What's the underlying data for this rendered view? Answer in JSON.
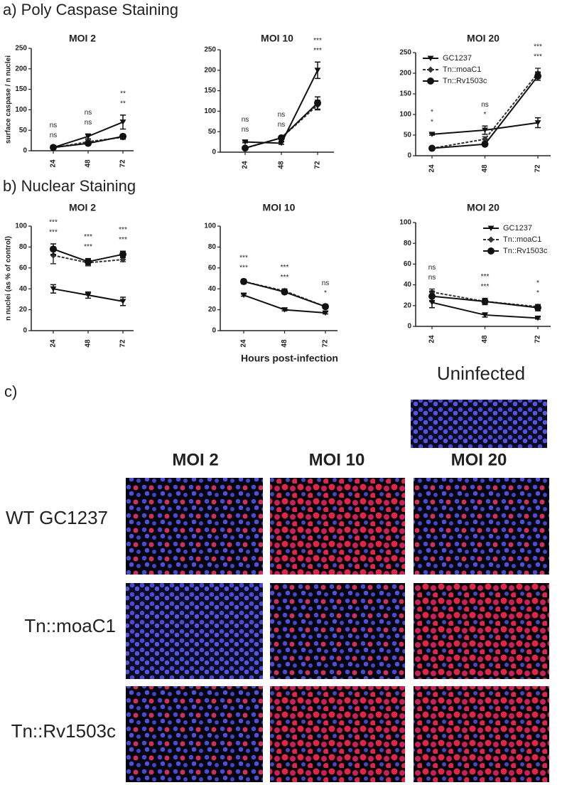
{
  "headings": {
    "a": "a) Poly Caspase Staining",
    "b": "b) Nuclear Staining",
    "c": "c)"
  },
  "chart_data": [
    {
      "type": "line",
      "title": "MOI 2",
      "ylabel": "surface caspase / n nuclei",
      "categories": [
        "24",
        "48",
        "72"
      ],
      "ylim": [
        0,
        250
      ],
      "yticks": [
        0,
        50,
        100,
        150,
        200,
        250
      ],
      "annotations": [
        [
          "ns",
          "ns"
        ],
        [
          "ns",
          "ns"
        ],
        [
          "**",
          "**"
        ]
      ],
      "series": [
        {
          "color": "#111",
          "marker": "triangle-down",
          "values": [
            8,
            35,
            70
          ],
          "errors": [
            2,
            6,
            17
          ]
        },
        {
          "color": "#333",
          "marker": "diamond",
          "line_style": "dashed",
          "values": [
            7,
            22,
            33
          ],
          "errors": [
            2,
            4,
            5
          ]
        },
        {
          "color": "#111",
          "marker": "circle",
          "values": [
            8,
            18,
            35
          ],
          "errors": [
            2,
            3,
            5
          ]
        }
      ]
    },
    {
      "type": "line",
      "title": "MOI 10",
      "categories": [
        "24",
        "48",
        "72"
      ],
      "ylim": [
        0,
        250
      ],
      "yticks": [
        0,
        50,
        100,
        150,
        200,
        250
      ],
      "annotations": [
        [
          "ns",
          "ns"
        ],
        [
          "ns",
          "ns"
        ],
        [
          "***",
          "***"
        ]
      ],
      "series": [
        {
          "color": "#111",
          "marker": "triangle-down",
          "values": [
            25,
            22,
            200
          ],
          "errors": [
            2,
            3,
            20
          ]
        },
        {
          "color": "#333",
          "marker": "diamond",
          "line_style": "dashed",
          "values": [
            10,
            35,
            115
          ],
          "errors": [
            2,
            4,
            12
          ]
        },
        {
          "color": "#111",
          "marker": "circle",
          "values": [
            10,
            35,
            120
          ],
          "errors": [
            2,
            4,
            15
          ]
        }
      ]
    },
    {
      "type": "line",
      "title": "MOI 20",
      "categories": [
        "24",
        "48",
        "72"
      ],
      "ylim": [
        0,
        250
      ],
      "yticks": [
        0,
        50,
        100,
        150,
        200,
        250
      ],
      "legend": "top-left",
      "annotations": [
        [
          "*",
          "*"
        ],
        [
          "ns",
          "*"
        ],
        [
          "***",
          "***"
        ]
      ],
      "series": [
        {
          "name": "GC1237",
          "color": "#111",
          "marker": "triangle-down",
          "values": [
            52,
            62,
            80
          ],
          "errors": [
            2,
            10,
            12
          ]
        },
        {
          "name": "Tn::moaC1",
          "color": "#333",
          "marker": "diamond",
          "line_style": "dashed",
          "values": [
            18,
            40,
            200
          ],
          "errors": [
            2,
            6,
            12
          ]
        },
        {
          "name": "Tn::Rv1503c",
          "color": "#111",
          "marker": "circle",
          "values": [
            18,
            28,
            193
          ],
          "errors": [
            2,
            4,
            10
          ]
        }
      ]
    },
    {
      "type": "line",
      "title": "MOI 2",
      "ylabel": "n nuclei (as % of control)",
      "categories": [
        "24",
        "48",
        "72"
      ],
      "ylim": [
        0,
        100
      ],
      "yticks": [
        0,
        20,
        40,
        60,
        80,
        100
      ],
      "annotations": [
        [
          "***",
          "***"
        ],
        [
          "***",
          "***"
        ],
        [
          "***",
          "***"
        ]
      ],
      "series": [
        {
          "color": "#111",
          "marker": "triangle-down",
          "values": [
            40,
            34,
            28
          ],
          "errors": [
            4,
            3,
            4
          ]
        },
        {
          "color": "#333",
          "marker": "diamond",
          "line_style": "dashed",
          "values": [
            72,
            65,
            68
          ],
          "errors": [
            8,
            3,
            2
          ]
        },
        {
          "color": "#111",
          "marker": "circle",
          "values": [
            78,
            66,
            73
          ],
          "errors": [
            5,
            3,
            3
          ]
        }
      ]
    },
    {
      "type": "line",
      "title": "MOI 10",
      "xlabel": "Hours post-infection",
      "categories": [
        "24",
        "48",
        "72"
      ],
      "ylim": [
        0,
        100
      ],
      "yticks": [
        0,
        20,
        40,
        60,
        80,
        100
      ],
      "annotations": [
        [
          "***",
          "***"
        ],
        [
          "***",
          "***"
        ],
        [
          "ns",
          "*"
        ]
      ],
      "series": [
        {
          "color": "#111",
          "marker": "triangle-down",
          "values": [
            34,
            20,
            17
          ],
          "errors": [
            1,
            1,
            1
          ]
        },
        {
          "color": "#333",
          "marker": "diamond",
          "line_style": "dashed",
          "values": [
            47,
            38,
            23
          ],
          "errors": [
            2,
            2,
            2
          ]
        },
        {
          "color": "#111",
          "marker": "circle",
          "values": [
            47,
            37,
            23
          ],
          "errors": [
            2,
            2,
            2
          ]
        }
      ]
    },
    {
      "type": "line",
      "title": "MOI 20",
      "categories": [
        "24",
        "48",
        "72"
      ],
      "ylim": [
        0,
        100
      ],
      "yticks": [
        0,
        20,
        40,
        60,
        80,
        100
      ],
      "legend": "top-right",
      "annotations": [
        [
          "ns",
          "ns"
        ],
        [
          "***",
          "***"
        ],
        [
          "*",
          "*"
        ]
      ],
      "series": [
        {
          "name": "GC1237",
          "color": "#111",
          "marker": "triangle-down",
          "values": [
            23,
            11,
            8
          ],
          "errors": [
            5,
            2,
            1
          ]
        },
        {
          "name": "Tn::moaC1",
          "color": "#333",
          "marker": "diamond",
          "line_style": "dashed",
          "values": [
            33,
            24,
            19
          ],
          "errors": [
            3,
            3,
            2
          ]
        },
        {
          "name": "Tn::Rv1503c",
          "color": "#111",
          "marker": "circle",
          "values": [
            29,
            24,
            18
          ],
          "errors": [
            5,
            3,
            3
          ]
        }
      ]
    }
  ],
  "micrographs": {
    "uninfected": "Uninfected",
    "columns": [
      "MOI 2",
      "MOI 10",
      "MOI 20"
    ],
    "rows": [
      "WT GC1237",
      "Tn::moaC1",
      "Tn::Rv1503c"
    ]
  }
}
